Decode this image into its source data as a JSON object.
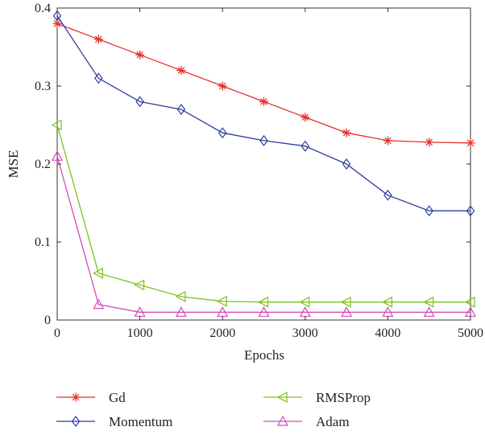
{
  "chart_data": {
    "type": "line",
    "title": "",
    "xlabel": "Epochs",
    "ylabel": "MSE",
    "xlim": [
      0,
      5000
    ],
    "ylim": [
      0,
      0.4
    ],
    "grid": false,
    "legend_position": "bottom",
    "x": [
      0,
      500,
      1000,
      1500,
      2000,
      2500,
      3000,
      3500,
      4000,
      4500,
      5000
    ],
    "x_ticks": [
      0,
      1000,
      2000,
      3000,
      4000,
      5000
    ],
    "x_tick_labels": [
      "0",
      "1000",
      "2000",
      "3000",
      "4000",
      "5000"
    ],
    "y_ticks": [
      0,
      0.1,
      0.2,
      0.3,
      0.4
    ],
    "y_tick_labels": [
      "0",
      "0.1",
      "0.2",
      "0.3",
      "0.4"
    ],
    "series": [
      {
        "name": "Gd",
        "color": "#e8312b",
        "marker": "asterisk",
        "values": [
          0.38,
          0.36,
          0.34,
          0.32,
          0.3,
          0.28,
          0.26,
          0.24,
          0.23,
          0.228,
          0.227
        ]
      },
      {
        "name": "Momentum",
        "color": "#2e3b9e",
        "marker": "diamond",
        "values": [
          0.39,
          0.31,
          0.28,
          0.27,
          0.24,
          0.23,
          0.223,
          0.2,
          0.16,
          0.14,
          0.14
        ]
      },
      {
        "name": "RMSProp",
        "color": "#7ac21c",
        "marker": "triangle-left",
        "values": [
          0.25,
          0.06,
          0.045,
          0.03,
          0.024,
          0.023,
          0.023,
          0.023,
          0.023,
          0.023,
          0.023
        ]
      },
      {
        "name": "Adam",
        "color": "#d44bb8",
        "marker": "triangle-up",
        "values": [
          0.21,
          0.02,
          0.01,
          0.01,
          0.01,
          0.01,
          0.01,
          0.01,
          0.01,
          0.01,
          0.01
        ]
      }
    ]
  }
}
